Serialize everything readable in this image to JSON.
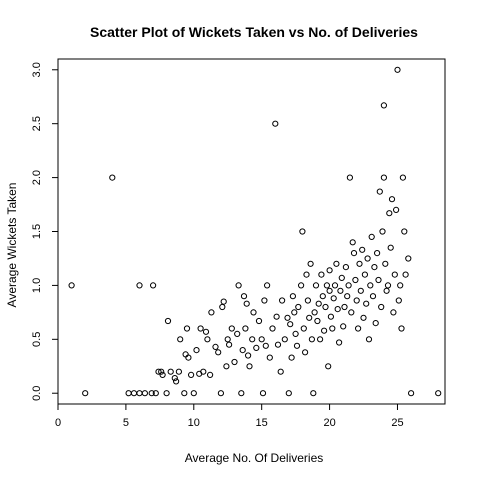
{
  "chart_data": {
    "type": "scatter",
    "title": "Scatter Plot of Wickets Taken vs No. of Deliveries",
    "xlabel": "Average No. Of Deliveries",
    "ylabel": "Average Wickets Taken",
    "xlim": [
      0,
      28.5
    ],
    "ylim": [
      -0.1,
      3.1
    ],
    "x_ticks": [
      0,
      5,
      10,
      15,
      20,
      25
    ],
    "y_ticks": [
      0.0,
      0.5,
      1.0,
      1.5,
      2.0,
      2.5,
      3.0
    ],
    "x_tick_labels": [
      "0",
      "5",
      "10",
      "15",
      "20",
      "25"
    ],
    "y_tick_labels": [
      "0.0",
      "0.5",
      "1.0",
      "1.5",
      "2.0",
      "2.5",
      "3.0"
    ],
    "grid": false,
    "points": [
      [
        1,
        1.0
      ],
      [
        2,
        0
      ],
      [
        4,
        2.0
      ],
      [
        5.2,
        0
      ],
      [
        5.6,
        0
      ],
      [
        6,
        0
      ],
      [
        6,
        1.0
      ],
      [
        6.4,
        0
      ],
      [
        6.9,
        0
      ],
      [
        7,
        1.0
      ],
      [
        7.2,
        0
      ],
      [
        7.4,
        0.2
      ],
      [
        7.6,
        0.2
      ],
      [
        7.7,
        0.17
      ],
      [
        8,
        0
      ],
      [
        8.1,
        0.67
      ],
      [
        8.3,
        0.2
      ],
      [
        8.6,
        0.14
      ],
      [
        8.7,
        0.11
      ],
      [
        8.9,
        0.2
      ],
      [
        9,
        0.5
      ],
      [
        9.3,
        0
      ],
      [
        9.4,
        0.36
      ],
      [
        9.5,
        0.6
      ],
      [
        9.6,
        0.33
      ],
      [
        9.8,
        0.17
      ],
      [
        10,
        0
      ],
      [
        10.2,
        0.4
      ],
      [
        10.4,
        0.18
      ],
      [
        10.5,
        0.6
      ],
      [
        10.7,
        0.2
      ],
      [
        10.9,
        0.57
      ],
      [
        11,
        0.5
      ],
      [
        11.2,
        0.17
      ],
      [
        11.3,
        0.75
      ],
      [
        11.6,
        0.43
      ],
      [
        11.8,
        0.38
      ],
      [
        12,
        0
      ],
      [
        12.1,
        0.8
      ],
      [
        12.2,
        0.85
      ],
      [
        12.4,
        0.25
      ],
      [
        12.5,
        0.5
      ],
      [
        12.6,
        0.45
      ],
      [
        12.8,
        0.6
      ],
      [
        13,
        0.29
      ],
      [
        13.2,
        0.55
      ],
      [
        13.3,
        1.0
      ],
      [
        13.5,
        0
      ],
      [
        13.6,
        0.4
      ],
      [
        13.7,
        0.9
      ],
      [
        13.8,
        0.6
      ],
      [
        13.9,
        0.83
      ],
      [
        14,
        0.35
      ],
      [
        14.1,
        0.25
      ],
      [
        14.3,
        0.5
      ],
      [
        14.4,
        0.75
      ],
      [
        14.6,
        0.42
      ],
      [
        14.8,
        0.67
      ],
      [
        15,
        0.5
      ],
      [
        15.1,
        0
      ],
      [
        15.2,
        0.86
      ],
      [
        15.3,
        0.44
      ],
      [
        15.4,
        1.0
      ],
      [
        15.6,
        0.33
      ],
      [
        15.8,
        0.6
      ],
      [
        16,
        2.5
      ],
      [
        16.1,
        0.71
      ],
      [
        16.2,
        0.45
      ],
      [
        16.4,
        0.2
      ],
      [
        16.5,
        0.86
      ],
      [
        16.7,
        0.5
      ],
      [
        16.9,
        0.7
      ],
      [
        17,
        0
      ],
      [
        17.1,
        0.64
      ],
      [
        17.2,
        0.33
      ],
      [
        17.3,
        0.9
      ],
      [
        17.4,
        0.75
      ],
      [
        17.5,
        0.55
      ],
      [
        17.6,
        0.44
      ],
      [
        17.7,
        0.8
      ],
      [
        17.9,
        1.0
      ],
      [
        18,
        1.5
      ],
      [
        18.1,
        0.6
      ],
      [
        18.2,
        0.38
      ],
      [
        18.3,
        1.1
      ],
      [
        18.4,
        0.86
      ],
      [
        18.5,
        0.7
      ],
      [
        18.6,
        1.2
      ],
      [
        18.7,
        0.5
      ],
      [
        18.8,
        0
      ],
      [
        18.9,
        0.75
      ],
      [
        19,
        1.0
      ],
      [
        19.1,
        0.67
      ],
      [
        19.2,
        0.83
      ],
      [
        19.3,
        0.5
      ],
      [
        19.4,
        1.1
      ],
      [
        19.5,
        0.9
      ],
      [
        19.6,
        0.58
      ],
      [
        19.7,
        0.8
      ],
      [
        19.8,
        1.0
      ],
      [
        19.9,
        0.25
      ],
      [
        20,
        0.95
      ],
      [
        20,
        1.14
      ],
      [
        20.1,
        0.71
      ],
      [
        20.2,
        0.6
      ],
      [
        20.3,
        0.88
      ],
      [
        20.4,
        1.0
      ],
      [
        20.5,
        1.2
      ],
      [
        20.6,
        0.78
      ],
      [
        20.7,
        0.47
      ],
      [
        20.8,
        0.95
      ],
      [
        20.9,
        1.07
      ],
      [
        21,
        0.62
      ],
      [
        21.1,
        0.8
      ],
      [
        21.2,
        1.17
      ],
      [
        21.3,
        0.9
      ],
      [
        21.4,
        1.0
      ],
      [
        21.5,
        2.0
      ],
      [
        21.6,
        0.75
      ],
      [
        21.7,
        1.4
      ],
      [
        21.8,
        1.3
      ],
      [
        21.9,
        1.05
      ],
      [
        22,
        0.86
      ],
      [
        22.1,
        0.6
      ],
      [
        22.2,
        1.2
      ],
      [
        22.3,
        0.95
      ],
      [
        22.4,
        1.33
      ],
      [
        22.5,
        0.7
      ],
      [
        22.6,
        1.1
      ],
      [
        22.7,
        0.83
      ],
      [
        22.8,
        1.25
      ],
      [
        22.9,
        0.5
      ],
      [
        23,
        1.0
      ],
      [
        23.1,
        1.45
      ],
      [
        23.2,
        0.9
      ],
      [
        23.3,
        1.17
      ],
      [
        23.4,
        0.65
      ],
      [
        23.5,
        1.3
      ],
      [
        23.6,
        1.05
      ],
      [
        23.7,
        1.87
      ],
      [
        23.8,
        0.8
      ],
      [
        23.9,
        1.5
      ],
      [
        24,
        2.67
      ],
      [
        24,
        2.0
      ],
      [
        24.1,
        1.2
      ],
      [
        24.2,
        0.95
      ],
      [
        24.3,
        1.0
      ],
      [
        24.4,
        1.67
      ],
      [
        24.5,
        1.35
      ],
      [
        24.6,
        1.8
      ],
      [
        24.7,
        0.75
      ],
      [
        24.8,
        1.1
      ],
      [
        24.9,
        1.7
      ],
      [
        25,
        3.0
      ],
      [
        25.1,
        0.86
      ],
      [
        25.2,
        1.0
      ],
      [
        25.3,
        0.6
      ],
      [
        25.4,
        2.0
      ],
      [
        25.5,
        1.5
      ],
      [
        25.6,
        1.1
      ],
      [
        25.8,
        1.25
      ],
      [
        26,
        0
      ],
      [
        28,
        0
      ]
    ]
  }
}
